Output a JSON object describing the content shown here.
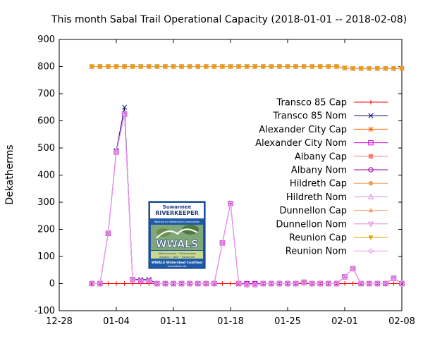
{
  "chart_data": {
    "type": "line",
    "title": "This month Sabal Trail Operational Capacity (2018-01-01 -- 2018-02-08)",
    "xlabel": "",
    "ylabel": "Dekatherms",
    "xlim": [
      "2017-12-28",
      "2018-02-08"
    ],
    "ylim": [
      -100,
      900
    ],
    "yticks": [
      -100,
      0,
      100,
      200,
      300,
      400,
      500,
      600,
      700,
      800,
      900
    ],
    "xticks": [
      "12-28",
      "01-04",
      "01-11",
      "01-18",
      "01-25",
      "02-01",
      "02-08"
    ],
    "grid": false,
    "legend_position": "right",
    "dates": [
      "2018-01-01",
      "2018-01-02",
      "2018-01-03",
      "2018-01-04",
      "2018-01-05",
      "2018-01-06",
      "2018-01-07",
      "2018-01-08",
      "2018-01-09",
      "2018-01-10",
      "2018-01-11",
      "2018-01-12",
      "2018-01-13",
      "2018-01-14",
      "2018-01-15",
      "2018-01-16",
      "2018-01-17",
      "2018-01-18",
      "2018-01-19",
      "2018-01-20",
      "2018-01-21",
      "2018-01-22",
      "2018-01-23",
      "2018-01-24",
      "2018-01-25",
      "2018-01-26",
      "2018-01-27",
      "2018-01-28",
      "2018-01-29",
      "2018-01-30",
      "2018-01-31",
      "2018-02-01",
      "2018-02-02",
      "2018-02-03",
      "2018-02-04",
      "2018-02-05",
      "2018-02-06",
      "2018-02-07",
      "2018-02-08"
    ],
    "series": [
      {
        "name": "Transco 85 Cap",
        "color": "#ff0000",
        "marker": "plus",
        "values": [
          0,
          0,
          0,
          0,
          0,
          0,
          0,
          0,
          0,
          0,
          0,
          0,
          0,
          0,
          0,
          0,
          0,
          0,
          0,
          0,
          0,
          0,
          0,
          0,
          0,
          0,
          0,
          0,
          0,
          0,
          0,
          0,
          0,
          0,
          0,
          0,
          0,
          0,
          0
        ]
      },
      {
        "name": "Transco 85 Nom",
        "color": "#000080",
        "marker": "cross",
        "values": [
          0,
          0,
          185,
          490,
          650,
          15,
          15,
          15,
          0,
          0,
          0,
          0,
          0,
          0,
          0,
          0,
          150,
          295,
          0,
          0,
          0,
          0,
          0,
          0,
          0,
          0,
          5,
          0,
          0,
          0,
          0,
          25,
          55,
          0,
          0,
          0,
          0,
          20,
          0
        ]
      },
      {
        "name": "Alexander City Cap",
        "color": "#ff6600",
        "marker": "asterisk",
        "values": [
          800,
          800,
          800,
          800,
          800,
          800,
          800,
          800,
          800,
          800,
          800,
          800,
          800,
          800,
          800,
          800,
          800,
          800,
          800,
          800,
          800,
          800,
          800,
          800,
          800,
          800,
          800,
          800,
          800,
          800,
          800,
          795,
          793,
          793,
          793,
          793,
          793,
          793,
          793
        ]
      },
      {
        "name": "Alexander City Nom",
        "color": "#cc00cc",
        "marker": "square",
        "values": [
          0,
          0,
          185,
          485,
          625,
          15,
          10,
          10,
          0,
          0,
          0,
          0,
          0,
          0,
          0,
          0,
          150,
          295,
          0,
          0,
          0,
          0,
          0,
          0,
          0,
          0,
          5,
          0,
          0,
          0,
          0,
          25,
          55,
          0,
          0,
          0,
          0,
          20,
          0
        ]
      },
      {
        "name": "Albany Cap",
        "color": "#f08080",
        "marker": "filled-square",
        "values": [
          800,
          800,
          800,
          800,
          800,
          800,
          800,
          800,
          800,
          800,
          800,
          800,
          800,
          800,
          800,
          800,
          800,
          800,
          800,
          800,
          800,
          800,
          800,
          800,
          800,
          800,
          800,
          800,
          800,
          800,
          800,
          795,
          793,
          793,
          793,
          793,
          793,
          793,
          793
        ]
      },
      {
        "name": "Albany Nom",
        "color": "#990099",
        "marker": "circle",
        "values": [
          0,
          0,
          185,
          485,
          625,
          15,
          10,
          10,
          0,
          0,
          0,
          0,
          0,
          0,
          0,
          0,
          150,
          295,
          0,
          -5,
          -5,
          0,
          0,
          0,
          0,
          0,
          5,
          0,
          0,
          0,
          0,
          25,
          55,
          0,
          0,
          0,
          0,
          20,
          0
        ]
      },
      {
        "name": "Hildreth Cap",
        "color": "#f0a050",
        "marker": "filled-circle",
        "values": [
          800,
          800,
          800,
          800,
          800,
          800,
          800,
          800,
          800,
          800,
          800,
          800,
          800,
          800,
          800,
          800,
          800,
          800,
          800,
          800,
          800,
          800,
          800,
          800,
          800,
          800,
          800,
          800,
          800,
          800,
          800,
          795,
          793,
          793,
          793,
          793,
          793,
          793,
          793
        ]
      },
      {
        "name": "Hildreth Nom",
        "color": "#dd88dd",
        "marker": "triangle",
        "values": [
          0,
          0,
          185,
          485,
          625,
          15,
          10,
          10,
          0,
          0,
          0,
          0,
          0,
          0,
          0,
          0,
          150,
          295,
          0,
          -5,
          -5,
          0,
          0,
          0,
          0,
          0,
          5,
          0,
          0,
          0,
          0,
          25,
          55,
          0,
          0,
          0,
          0,
          20,
          0
        ]
      },
      {
        "name": "Dunnellon Cap",
        "color": "#f0a070",
        "marker": "filled-triangle",
        "values": [
          800,
          800,
          800,
          800,
          800,
          800,
          800,
          800,
          800,
          800,
          800,
          800,
          800,
          800,
          800,
          800,
          800,
          800,
          800,
          800,
          800,
          800,
          800,
          800,
          800,
          800,
          800,
          800,
          800,
          800,
          800,
          795,
          793,
          793,
          793,
          793,
          793,
          793,
          793
        ]
      },
      {
        "name": "Dunnellon Nom",
        "color": "#dd88dd",
        "marker": "triangle-down",
        "values": [
          0,
          0,
          185,
          485,
          625,
          15,
          10,
          10,
          0,
          0,
          0,
          0,
          0,
          0,
          0,
          0,
          150,
          295,
          0,
          -5,
          -5,
          0,
          0,
          0,
          0,
          0,
          5,
          0,
          0,
          0,
          0,
          25,
          55,
          0,
          0,
          0,
          0,
          20,
          0
        ]
      },
      {
        "name": "Reunion Cap",
        "color": "#e0a000",
        "marker": "filled-triangle-down",
        "values": [
          800,
          800,
          800,
          800,
          800,
          800,
          800,
          800,
          800,
          800,
          800,
          800,
          800,
          800,
          800,
          800,
          800,
          800,
          800,
          800,
          800,
          800,
          800,
          800,
          800,
          800,
          800,
          800,
          800,
          800,
          800,
          795,
          793,
          793,
          793,
          793,
          793,
          793,
          793
        ]
      },
      {
        "name": "Reunion Nom",
        "color": "#ee99ee",
        "marker": "diamond",
        "values": [
          0,
          0,
          185,
          485,
          625,
          15,
          10,
          10,
          0,
          0,
          0,
          0,
          0,
          0,
          0,
          0,
          150,
          295,
          0,
          -5,
          -5,
          0,
          0,
          0,
          0,
          0,
          5,
          0,
          0,
          0,
          0,
          25,
          55,
          0,
          0,
          0,
          0,
          20,
          0
        ]
      }
    ]
  },
  "logo": {
    "top_line": "Suwannee",
    "brand": "RIVERKEEPER",
    "subtitle": "Working for Watershed Conservation",
    "wwals": "WWALS",
    "rivers1": "Withlacoochee • Willacoochee",
    "rivers2": "Alapaha • Little • Suwannee",
    "footer": "WWALS Watershed Coalition",
    "url": "www.wwals.net"
  }
}
